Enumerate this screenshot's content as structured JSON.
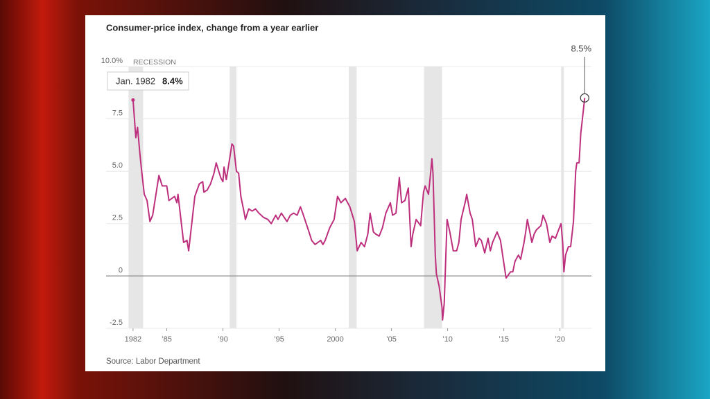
{
  "chart_data": {
    "type": "line",
    "title": "Consumer-price index, change from a year earlier",
    "source": "Source: Labor Department",
    "recession_label": "RECESSION",
    "recessions": [
      [
        1981.6,
        1982.9
      ],
      [
        1990.6,
        1991.2
      ],
      [
        2001.2,
        2001.9
      ],
      [
        2007.9,
        2009.5
      ],
      [
        2020.1,
        2020.35
      ]
    ],
    "xlim": [
      1979.6,
      2022.8
    ],
    "ylim": [
      -2.5,
      10
    ],
    "xticks": [
      {
        "value": 1982,
        "label": "1982"
      },
      {
        "value": 1985,
        "label": "’85"
      },
      {
        "value": 1990,
        "label": "’90"
      },
      {
        "value": 1995,
        "label": "’95"
      },
      {
        "value": 2000,
        "label": "2000"
      },
      {
        "value": 2005,
        "label": "’05"
      },
      {
        "value": 2010,
        "label": "’10"
      },
      {
        "value": 2015,
        "label": "’15"
      },
      {
        "value": 2020,
        "label": "’20"
      }
    ],
    "yticks": [
      -2.5,
      0,
      2.5,
      {
        "value": 5,
        "label": "5.0"
      },
      7.5,
      {
        "value": 10,
        "label": "10.0%"
      }
    ],
    "grid": true,
    "series": [
      {
        "color": "#bd2f7d",
        "x": [
          1982.0,
          1982.25,
          1982.4,
          1982.6,
          1982.75,
          1983.0,
          1983.25,
          1983.5,
          1983.75,
          1984.3,
          1984.6,
          1985.0,
          1985.2,
          1985.7,
          1985.9,
          1986.0,
          1986.5,
          1986.8,
          1986.95,
          1987.5,
          1987.9,
          1988.2,
          1988.3,
          1988.6,
          1988.9,
          1989.2,
          1989.4,
          1989.8,
          1990.0,
          1990.1,
          1990.3,
          1990.6,
          1990.8,
          1990.95,
          1991.2,
          1991.4,
          1991.6,
          1991.9,
          1992.0,
          1992.3,
          1992.6,
          1992.9,
          1993.2,
          1993.6,
          1994.0,
          1994.3,
          1994.7,
          1994.9,
          1995.2,
          1995.7,
          1996.0,
          1996.3,
          1996.6,
          1996.9,
          1997.1,
          1997.6,
          1997.9,
          1998.2,
          1998.7,
          1998.9,
          1999.1,
          1999.5,
          1999.9,
          2000.2,
          2000.5,
          2000.7,
          2000.9,
          2001.3,
          2001.7,
          2001.95,
          2002.3,
          2002.6,
          2002.9,
          2003.1,
          2003.4,
          2003.6,
          2003.9,
          2004.2,
          2004.5,
          2004.9,
          2005.1,
          2005.4,
          2005.7,
          2005.9,
          2006.2,
          2006.5,
          2006.75,
          2006.9,
          2007.2,
          2007.6,
          2007.85,
          2008.0,
          2008.3,
          2008.5,
          2008.6,
          2008.7,
          2008.9,
          2009.0,
          2009.25,
          2009.5,
          2009.55,
          2009.7,
          2009.95,
          2010.2,
          2010.5,
          2010.8,
          2011.0,
          2011.2,
          2011.6,
          2011.7,
          2012.0,
          2012.2,
          2012.5,
          2012.8,
          2013.0,
          2013.3,
          2013.6,
          2013.8,
          2014.0,
          2014.4,
          2014.7,
          2014.95,
          2015.2,
          2015.6,
          2015.8,
          2016.0,
          2016.3,
          2016.5,
          2016.8,
          2016.95,
          2017.1,
          2017.5,
          2017.7,
          2017.9,
          2018.3,
          2018.5,
          2018.8,
          2019.1,
          2019.3,
          2019.6,
          2019.95,
          2020.1,
          2020.25,
          2020.35,
          2020.5,
          2020.75,
          2020.95,
          2021.2,
          2021.4,
          2021.5,
          2021.7,
          2021.85,
          2022.0,
          2022.2
        ],
        "values": [
          8.4,
          6.6,
          7.1,
          5.9,
          5.1,
          3.9,
          3.6,
          2.6,
          2.9,
          4.8,
          4.3,
          4.3,
          3.6,
          3.8,
          3.5,
          3.9,
          1.6,
          1.7,
          1.2,
          3.8,
          4.4,
          4.5,
          4.0,
          4.1,
          4.4,
          4.9,
          5.4,
          4.7,
          4.5,
          5.2,
          4.6,
          5.6,
          6.3,
          6.2,
          5.0,
          4.9,
          3.8,
          3.0,
          2.7,
          3.2,
          3.1,
          3.2,
          3.0,
          2.8,
          2.7,
          2.5,
          2.9,
          2.7,
          3.0,
          2.6,
          2.9,
          3.0,
          2.9,
          3.3,
          3.0,
          2.2,
          1.7,
          1.5,
          1.7,
          1.5,
          1.7,
          2.3,
          2.7,
          3.8,
          3.5,
          3.6,
          3.7,
          3.3,
          2.6,
          1.2,
          1.6,
          1.4,
          2.0,
          3.0,
          2.1,
          2.0,
          1.9,
          2.3,
          3.0,
          3.5,
          2.9,
          3.0,
          4.7,
          3.5,
          3.6,
          4.2,
          1.4,
          2.0,
          2.7,
          2.4,
          4.0,
          4.3,
          3.9,
          5.0,
          5.6,
          4.9,
          1.0,
          0.1,
          -0.5,
          -1.5,
          -2.1,
          -1.3,
          2.7,
          2.1,
          1.2,
          1.2,
          1.6,
          2.7,
          3.6,
          3.9,
          3.0,
          2.7,
          1.4,
          1.8,
          1.7,
          1.1,
          1.8,
          1.2,
          1.6,
          2.1,
          1.7,
          0.8,
          -0.1,
          0.2,
          0.2,
          0.7,
          1.0,
          0.8,
          1.6,
          2.1,
          2.7,
          1.6,
          2.0,
          2.2,
          2.4,
          2.9,
          2.5,
          1.6,
          1.9,
          1.8,
          2.3,
          2.5,
          1.5,
          0.2,
          1.0,
          1.4,
          1.4,
          2.6,
          5.0,
          5.4,
          5.4,
          6.8,
          7.5,
          8.5
        ]
      }
    ],
    "callouts": [
      {
        "label": "Jan. 1982",
        "x": 1982.0,
        "value": 8.4,
        "value_label": "8.4%"
      },
      {
        "x": 2022.2,
        "value": 8.5,
        "value_label": "8.5%"
      }
    ]
  }
}
